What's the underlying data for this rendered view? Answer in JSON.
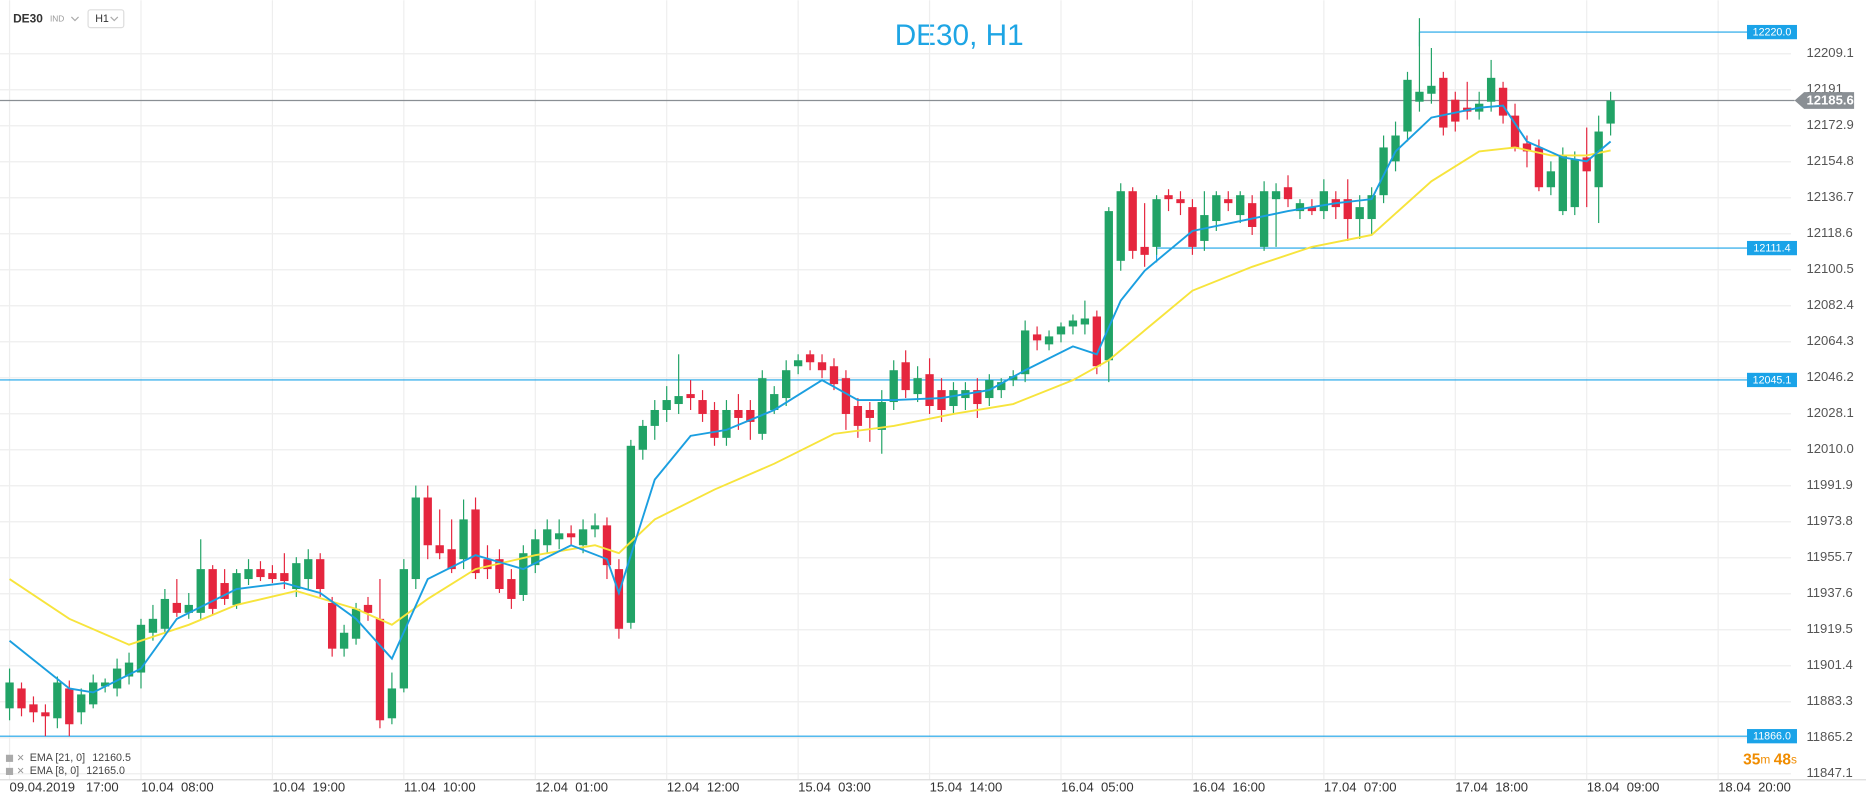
{
  "chart_data": {
    "type": "candlestick",
    "title": "DE30, H1",
    "symbol": "DE30",
    "symbol_tag": "IND",
    "timeframe": "H1",
    "up_color": "#21a366",
    "down_color": "#e5263e",
    "open": [
      11880,
      11890,
      11882,
      11878,
      11875,
      11890,
      11878,
      11882,
      11891,
      11890,
      11896,
      11898,
      11918,
      11920,
      11933,
      11928,
      11928,
      11950,
      11943,
      11932,
      11945,
      11950,
      11948,
      11948,
      11940,
      11945,
      11955,
      11933,
      11910,
      11915,
      11932,
      11925,
      11875,
      11890,
      11945,
      11986,
      11962,
      11960,
      11955,
      11980,
      11955,
      11955,
      11945,
      11937,
      11952,
      11962,
      11965,
      11968,
      11962,
      11970,
      11972,
      11950,
      11923,
      12010,
      12022,
      12030,
      12033,
      12038,
      12035,
      12030,
      12016,
      12030,
      12030,
      12018,
      12030,
      12036,
      12052,
      12058,
      12054,
      12052,
      12046,
      12032,
      12030,
      12020,
      12034,
      12054,
      12038,
      12048,
      12040,
      12032,
      12036,
      12040,
      12036,
      12040,
      12045,
      12048,
      12068,
      12063,
      12068,
      12072,
      12073,
      12077,
      12055,
      12105,
      12140,
      12112,
      12112,
      12138,
      12136,
      12132,
      12115,
      12125,
      12136,
      12128,
      12134,
      12112,
      12136,
      12142,
      12130,
      12132,
      12130,
      12136,
      12136,
      12126,
      12126,
      12138,
      12155,
      12170,
      12185,
      12189,
      12197,
      12186,
      12182,
      12180,
      12185,
      12192,
      12178,
      12164,
      12162,
      12142,
      12130,
      12132,
      12157,
      12142,
      12174
    ],
    "high": [
      11900,
      11893,
      11886,
      11882,
      11896,
      11894,
      11890,
      11897,
      11895,
      11905,
      11908,
      11925,
      11932,
      11940,
      11945,
      11938,
      11965,
      11952,
      11950,
      11950,
      11955,
      11954,
      11952,
      11958,
      11956,
      11960,
      11958,
      11936,
      11922,
      11933,
      11936,
      11945,
      11898,
      11955,
      11992,
      11992,
      11980,
      11975,
      11985,
      11986,
      11962,
      11960,
      11950,
      11962,
      11970,
      11975,
      11975,
      11972,
      11975,
      11978,
      11976,
      11955,
      12015,
      12025,
      12035,
      12042,
      12058,
      12045,
      12040,
      12034,
      12035,
      12038,
      12035,
      12050,
      12042,
      12055,
      12058,
      12060,
      12058,
      12056,
      12050,
      12036,
      12034,
      12040,
      12055,
      12060,
      12052,
      12056,
      12046,
      12044,
      12044,
      12046,
      12048,
      12046,
      12050,
      12075,
      12072,
      12070,
      12074,
      12078,
      12085,
      12080,
      12132,
      12144,
      12142,
      12134,
      12138,
      12141,
      12140,
      12136,
      12140,
      12140,
      12140,
      12140,
      12138,
      12145,
      12144,
      12148,
      12136,
      12136,
      12146,
      12140,
      12146,
      12138,
      12142,
      12168,
      12175,
      12200,
      12227,
      12212,
      12200,
      12190,
      12195,
      12190,
      12206,
      12195,
      12184,
      12168,
      12166,
      12155,
      12162,
      12160,
      12172,
      12178,
      12190
    ],
    "low": [
      11874,
      11876,
      11873,
      11866,
      11870,
      11866,
      11872,
      11880,
      11888,
      11886,
      11892,
      11890,
      11914,
      11918,
      11926,
      11925,
      11925,
      11927,
      11932,
      11930,
      11942,
      11944,
      11943,
      11940,
      11936,
      11940,
      11936,
      11906,
      11906,
      11912,
      11924,
      11870,
      11872,
      11888,
      11940,
      11955,
      11955,
      11948,
      11950,
      11945,
      11945,
      11938,
      11930,
      11934,
      11948,
      11958,
      11960,
      11962,
      11958,
      11966,
      11945,
      11915,
      11920,
      12005,
      12015,
      12024,
      12028,
      12030,
      12024,
      12012,
      12012,
      12020,
      12015,
      12015,
      12028,
      12032,
      12048,
      12050,
      12046,
      12040,
      12020,
      12016,
      12014,
      12008,
      12030,
      12036,
      12034,
      12028,
      12024,
      12028,
      12030,
      12026,
      12032,
      12036,
      12042,
      12044,
      12060,
      12060,
      12064,
      12068,
      12068,
      12048,
      12044,
      12100,
      12106,
      12102,
      12108,
      12130,
      12128,
      12108,
      12110,
      12120,
      12130,
      12124,
      12118,
      12110,
      12112,
      12132,
      12126,
      12128,
      12126,
      12126,
      12115,
      12116,
      12118,
      12134,
      12150,
      12165,
      12180,
      12184,
      12168,
      12170,
      12176,
      12176,
      12180,
      12174,
      12160,
      12152,
      12140,
      12138,
      12128,
      12128,
      12132,
      12124,
      12168
    ],
    "close": [
      11893,
      11880,
      11878,
      11876,
      11893,
      11872,
      11887,
      11893,
      11893,
      11900,
      11903,
      11922,
      11925,
      11935,
      11928,
      11932,
      11950,
      11930,
      11935,
      11948,
      11950,
      11946,
      11945,
      11944,
      11953,
      11955,
      11940,
      11910,
      11918,
      11930,
      11928,
      11874,
      11890,
      11950,
      11986,
      11962,
      11958,
      11950,
      11975,
      11948,
      11950,
      11940,
      11935,
      11958,
      11965,
      11970,
      11968,
      11966,
      11970,
      11972,
      11952,
      11920,
      12012,
      12022,
      12030,
      12035,
      12037,
      12036,
      12028,
      12016,
      12030,
      12026,
      12024,
      12046,
      12038,
      12050,
      12055,
      12054,
      12050,
      12043,
      12028,
      12022,
      12026,
      12034,
      12050,
      12040,
      12046,
      12032,
      12030,
      12040,
      12040,
      12033,
      12045,
      12044,
      12047,
      12070,
      12065,
      12067,
      12072,
      12075,
      12076,
      12052,
      12130,
      12140,
      12110,
      12108,
      12136,
      12136,
      12134,
      12112,
      12128,
      12138,
      12134,
      12138,
      12122,
      12140,
      12140,
      12136,
      12134,
      12130,
      12140,
      12132,
      12126,
      12132,
      12138,
      12162,
      12168,
      12196,
      12190,
      12193,
      12172,
      12175,
      12180,
      12184,
      12197,
      12178,
      12162,
      12160,
      12142,
      12150,
      12158,
      12156,
      12150,
      12170,
      12185.6
    ],
    "series": [
      {
        "name": "EMA [21, 0]",
        "color": "#f7e43c",
        "x": [
          0,
          5,
          10,
          15,
          19,
          24,
          29,
          32,
          35,
          39,
          44,
          49,
          51,
          54,
          59,
          64,
          69,
          74,
          79,
          84,
          89,
          92,
          96,
          99,
          104,
          109,
          114,
          119,
          123,
          126,
          129,
          132,
          134
        ],
        "values": [
          11945,
          11925,
          11912,
          11922,
          11932,
          11939,
          11930,
          11922,
          11935,
          11950,
          11957,
          11962,
          11958,
          11975,
          11990,
          12003,
          12018,
          12022,
          12028,
          12033,
          12045,
          12055,
          12075,
          12090,
          12102,
          12112,
          12118,
          12145,
          12160,
          12162,
          12158,
          12158,
          12160.5
        ],
        "last": 12160.5
      },
      {
        "name": "EMA [8, 0]",
        "color": "#1b9fe0",
        "x": [
          0,
          5,
          7,
          11,
          14,
          19,
          23,
          26,
          29,
          32,
          35,
          39,
          43,
          47,
          50,
          51,
          54,
          57,
          60,
          64,
          68,
          71,
          74,
          78,
          82,
          85,
          89,
          91,
          93,
          95,
          99,
          103,
          107,
          111,
          114,
          116,
          119,
          123,
          125,
          127,
          130,
          132,
          134
        ],
        "values": [
          11914,
          11890,
          11888,
          11900,
          11925,
          11940,
          11943,
          11938,
          11925,
          11905,
          11945,
          11957,
          11950,
          11962,
          11955,
          11938,
          11995,
          12017,
          12020,
          12030,
          12045,
          12035,
          12035,
          12036,
          12040,
          12050,
          12062,
          12058,
          12085,
          12100,
          12120,
          12125,
          12130,
          12134,
          12136,
          12160,
          12177,
          12182,
          12183,
          12165,
          12157,
          12155,
          12165
        ],
        "last": {
          "value": 12165.0,
          "label": "12165.0"
        }
      }
    ],
    "levels": [
      {
        "value": 12220.0,
        "label": "12220.0",
        "x_start": 118
      },
      {
        "value": 12111.4,
        "label": "12111.4",
        "x_start": 96
      },
      {
        "value": 12045.1,
        "label": "12045.1"
      },
      {
        "value": 11866.0,
        "label": "11866.0"
      }
    ],
    "current_price": 12185.6,
    "countdown": [
      "35",
      "m",
      "48",
      "s"
    ],
    "ylim": [
      11844.1,
      12236.0
    ],
    "yticks": [
      12209.1,
      12191,
      12172.9,
      12154.8,
      12136.7,
      12118.6,
      12100.5,
      12082.4,
      12064.3,
      12046.2,
      12028.1,
      {
        "value": 12010,
        "label": "12010.0"
      },
      11991.9,
      11973.8,
      11955.7,
      11937.6,
      11919.5,
      11901.4,
      11883.3,
      11865.2,
      11847.1
    ],
    "xlim": [
      -0.8,
      149.1
    ],
    "xticks": [
      {
        "value": 0,
        "label": "09.04.2019   17:00"
      },
      {
        "value": 11,
        "label": "10.04  08:00"
      },
      {
        "value": 22,
        "label": "10.04  19:00"
      },
      {
        "value": 33,
        "label": "11.04  10:00"
      },
      {
        "value": 44,
        "label": "12.04  01:00"
      },
      {
        "value": 55,
        "label": "12.04  12:00"
      },
      {
        "value": 66,
        "label": "15.04  03:00"
      },
      {
        "value": 77,
        "label": "15.04  14:00"
      },
      {
        "value": 88,
        "label": "16.04  05:00"
      },
      {
        "value": 99,
        "label": "16.04  16:00"
      },
      {
        "value": 110,
        "label": "17.04  07:00"
      },
      {
        "value": 121,
        "label": "17.04  18:00"
      },
      {
        "value": 132,
        "label": "18.04  09:00"
      },
      {
        "value": 143,
        "label": "18.04  20:00"
      }
    ],
    "grid": true
  }
}
